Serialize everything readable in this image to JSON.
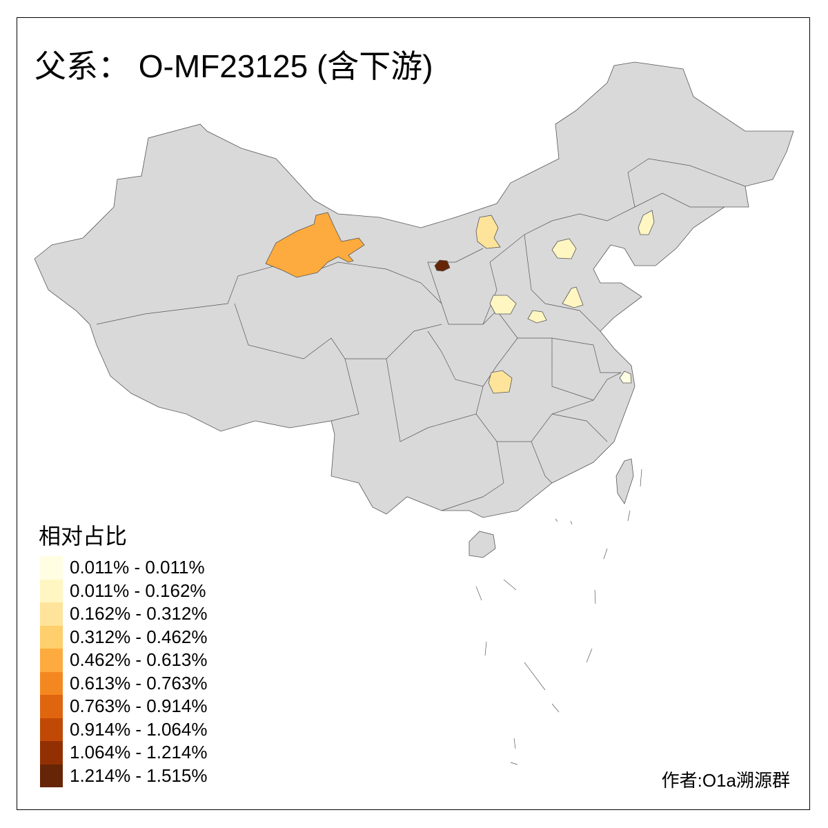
{
  "title": "父系： O-MF23125 (含下游)",
  "legend": {
    "title": "相对占比",
    "items": [
      {
        "label": "0.011% - 0.011%",
        "color": "#FFFEE3"
      },
      {
        "label": "0.011% - 0.162%",
        "color": "#FFF6C2"
      },
      {
        "label": "0.162% - 0.312%",
        "color": "#FEE49A"
      },
      {
        "label": "0.312% - 0.462%",
        "color": "#FECF6A"
      },
      {
        "label": "0.462% - 0.613%",
        "color": "#FDAB3E"
      },
      {
        "label": "0.613% - 0.763%",
        "color": "#F48820"
      },
      {
        "label": "0.763% - 0.914%",
        "color": "#E0650F"
      },
      {
        "label": "0.914% - 1.064%",
        "color": "#C04A05"
      },
      {
        "label": "1.064% - 1.214%",
        "color": "#923003"
      },
      {
        "label": "1.214% - 1.515%",
        "color": "#662506"
      }
    ]
  },
  "base_fill": "#D9D9D9",
  "author": "作者:O1a溯源群"
}
